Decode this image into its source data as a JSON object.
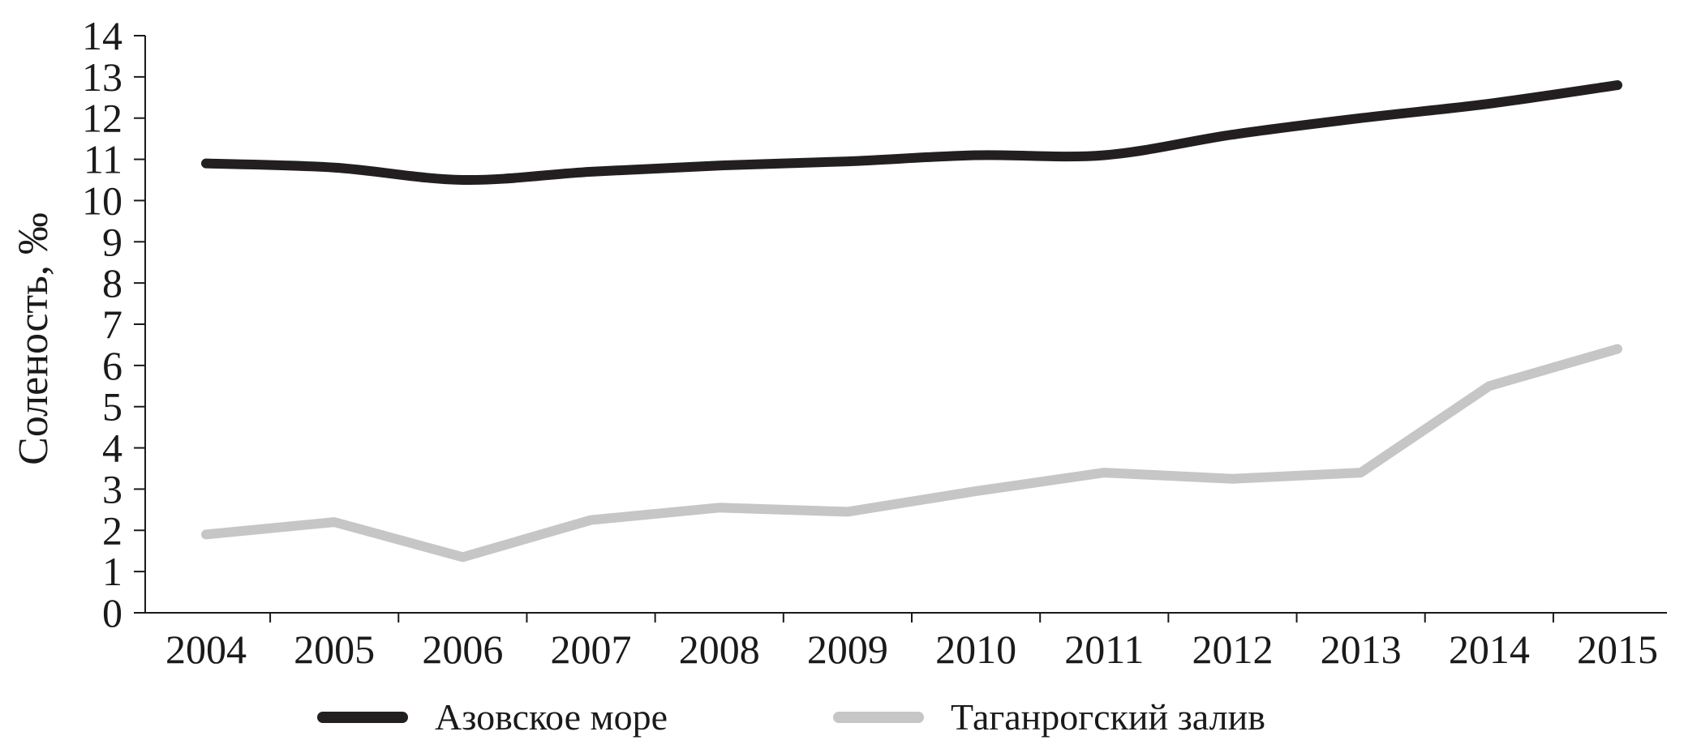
{
  "chart_data": {
    "type": "line",
    "title": "",
    "xlabel": "",
    "ylabel": "Соленость, ‰",
    "categories": [
      "2004",
      "2005",
      "2006",
      "2007",
      "2008",
      "2009",
      "2010",
      "2011",
      "2012",
      "2013",
      "2014",
      "2015"
    ],
    "ylim": [
      0,
      14
    ],
    "yticks": [
      0,
      1,
      2,
      3,
      4,
      5,
      6,
      7,
      8,
      9,
      10,
      11,
      12,
      13,
      14
    ],
    "grid": false,
    "legend_position": "bottom",
    "series": [
      {
        "name": "Азовское море",
        "color": "#231f20",
        "smooth": true,
        "values": [
          10.9,
          10.8,
          10.5,
          10.7,
          10.85,
          10.95,
          11.1,
          11.1,
          11.6,
          12.0,
          12.35,
          12.8
        ]
      },
      {
        "name": "Таганрогский залив",
        "color": "#c6c6c6",
        "smooth": false,
        "values": [
          1.9,
          2.2,
          1.35,
          2.25,
          2.55,
          2.45,
          2.95,
          3.4,
          3.25,
          3.4,
          5.5,
          6.4
        ]
      }
    ]
  }
}
